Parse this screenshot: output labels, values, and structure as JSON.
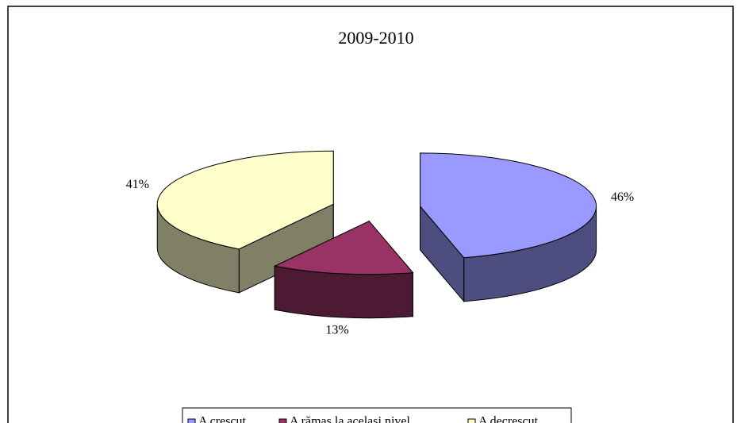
{
  "chart_data": {
    "type": "pie",
    "title": "2009-2010",
    "categories": [
      "A crescut",
      "A rămas la același nivel",
      "A decrescut"
    ],
    "values": [
      46,
      13,
      41
    ],
    "value_labels": [
      "46%",
      "13%",
      "41%"
    ],
    "colors": [
      "#9999ff",
      "#993366",
      "#ffffcc"
    ],
    "legend": "bottom"
  }
}
